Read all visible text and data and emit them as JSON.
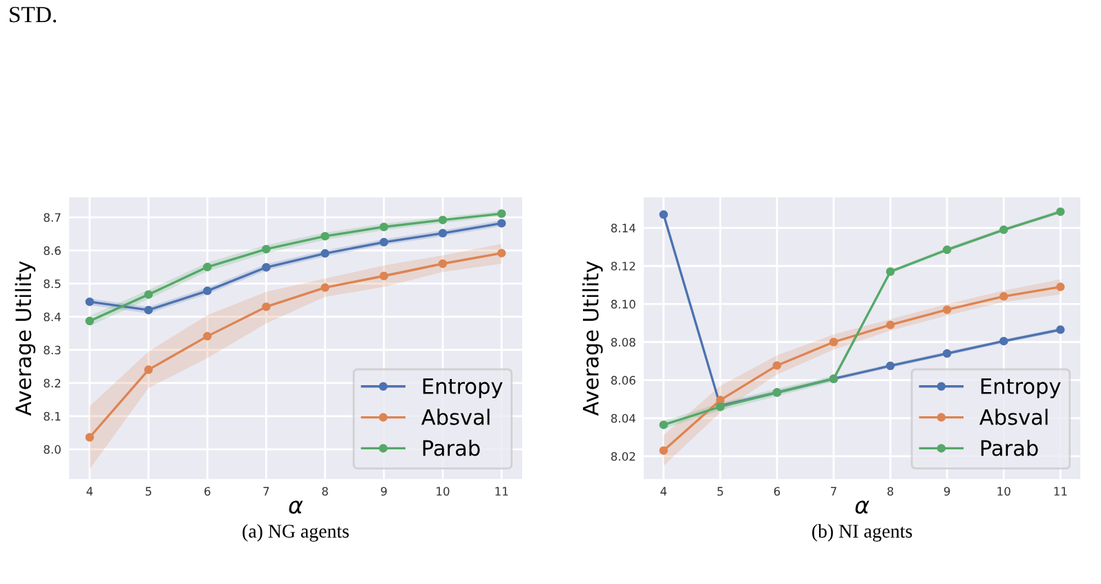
{
  "chart_data": [
    {
      "type": "line",
      "xlabel": "α",
      "ylabel": "Average Utility",
      "annotations": [
        "STD.",
        "(a) NG agents"
      ],
      "x": [
        4,
        5,
        6,
        7,
        8,
        9,
        10,
        11
      ],
      "xlim": [
        3.65,
        11.35
      ],
      "xticks": [
        4,
        5,
        6,
        7,
        8,
        9,
        10,
        11
      ],
      "ylim": [
        7.91,
        8.76
      ],
      "yticks": [
        {
          "value": 8.0,
          "label": "8.0"
        },
        8.1,
        8.2,
        8.3,
        8.4,
        8.5,
        8.6,
        8.7
      ],
      "grid": true,
      "legend": "bottom right",
      "marker": "circle",
      "line_style": "solid",
      "series": [
        {
          "name": "Entropy",
          "color": "#4c72b0",
          "values": [
            8.445,
            8.42,
            8.478,
            8.549,
            8.591,
            8.625,
            8.652,
            8.682
          ],
          "lower": [
            8.435,
            8.41,
            8.468,
            8.539,
            8.582,
            8.616,
            8.643,
            8.673
          ],
          "upper": [
            8.455,
            8.43,
            8.488,
            8.559,
            8.6,
            8.634,
            8.661,
            8.691
          ]
        },
        {
          "name": "Absval",
          "color": "#dd8452",
          "values": [
            8.036,
            8.24,
            8.341,
            8.43,
            8.488,
            8.523,
            8.56,
            8.592
          ],
          "lower": [
            7.94,
            8.185,
            8.275,
            8.38,
            8.46,
            8.49,
            8.535,
            8.56
          ],
          "upper": [
            8.13,
            8.295,
            8.405,
            8.475,
            8.515,
            8.555,
            8.585,
            8.62
          ]
        },
        {
          "name": "Parab",
          "color": "#55a868",
          "values": [
            8.387,
            8.467,
            8.55,
            8.604,
            8.643,
            8.671,
            8.692,
            8.711
          ],
          "lower": [
            8.372,
            8.453,
            8.537,
            8.592,
            8.632,
            8.661,
            8.683,
            8.703
          ],
          "upper": [
            8.402,
            8.481,
            8.563,
            8.616,
            8.654,
            8.681,
            8.701,
            8.719
          ]
        }
      ]
    },
    {
      "type": "line",
      "xlabel": "α",
      "ylabel": "Average Utility",
      "annotations": [
        "(b) NI agents"
      ],
      "x": [
        4,
        5,
        6,
        7,
        8,
        9,
        10,
        11
      ],
      "xlim": [
        3.65,
        11.35
      ],
      "xticks": [
        4,
        5,
        6,
        7,
        8,
        9,
        10,
        11
      ],
      "ylim": [
        8.008,
        8.156
      ],
      "yticks": [
        8.02,
        8.04,
        8.06,
        8.08,
        {
          "value": 8.1,
          "label": "8.10"
        },
        8.12,
        8.14
      ],
      "grid": true,
      "legend": "bottom right",
      "marker": "circle",
      "line_style": "solid",
      "series": [
        {
          "name": "Entropy",
          "color": "#4c72b0",
          "values": [
            8.147,
            8.0465,
            8.0535,
            8.0607,
            8.0675,
            8.074,
            8.0805,
            8.0865
          ],
          "lower": [
            8.146,
            8.0455,
            8.0525,
            8.0597,
            8.0665,
            8.073,
            8.0795,
            8.0855
          ],
          "upper": [
            8.148,
            8.0475,
            8.0545,
            8.0617,
            8.0685,
            8.075,
            8.0815,
            8.0875
          ]
        },
        {
          "name": "Absval",
          "color": "#dd8452",
          "values": [
            8.023,
            8.0495,
            8.0677,
            8.08,
            8.089,
            8.097,
            8.104,
            8.109
          ],
          "lower": [
            8.015,
            8.043,
            8.063,
            8.076,
            8.086,
            8.094,
            8.101,
            8.105
          ],
          "upper": [
            8.031,
            8.057,
            8.073,
            8.084,
            8.092,
            8.1,
            8.107,
            8.113
          ]
        },
        {
          "name": "Parab",
          "color": "#55a868",
          "values": [
            8.0365,
            8.046,
            8.0535,
            8.0607,
            8.117,
            8.1285,
            8.139,
            8.1485
          ],
          "lower": [
            8.0345,
            8.044,
            8.0515,
            8.0592,
            8.116,
            8.1275,
            8.138,
            8.1475
          ],
          "upper": [
            8.0385,
            8.048,
            8.0555,
            8.0622,
            8.118,
            8.1295,
            8.14,
            8.1495
          ]
        }
      ]
    }
  ]
}
